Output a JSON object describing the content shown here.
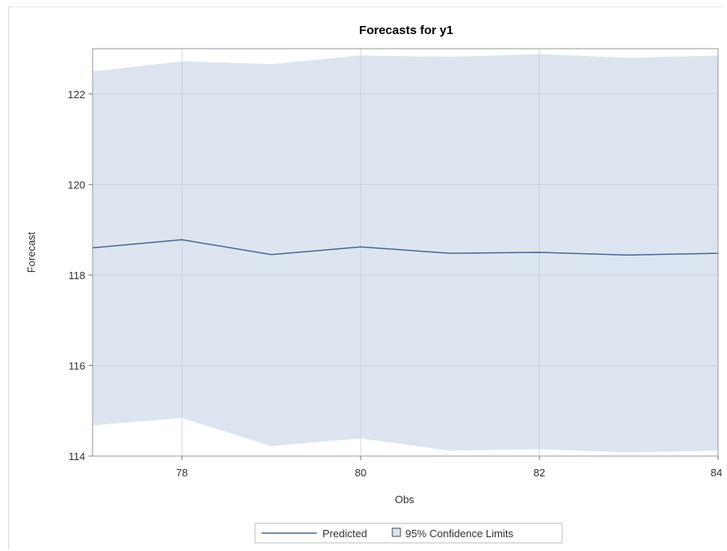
{
  "chart_data": {
    "type": "line",
    "title": "Forecasts for y1",
    "xlabel": "Obs",
    "ylabel": "Forecast",
    "xlim": [
      77,
      84
    ],
    "ylim": [
      114,
      123
    ],
    "x_ticks": [
      "78",
      "80",
      "82",
      "84"
    ],
    "y_ticks": [
      "114",
      "116",
      "118",
      "120",
      "122"
    ],
    "x_tick_values": [
      78,
      80,
      82,
      84
    ],
    "y_tick_values": [
      114,
      116,
      118,
      120,
      122
    ],
    "grid": true,
    "legend_position": "bottom",
    "x": [
      77,
      78,
      79,
      80,
      81,
      82,
      83,
      84
    ],
    "series": [
      {
        "name": "Predicted",
        "type": "line",
        "values": [
          118.6,
          118.78,
          118.45,
          118.62,
          118.48,
          118.5,
          118.44,
          118.48
        ],
        "color": "#4a6890"
      },
      {
        "name": "95% Confidence Limits",
        "type": "band",
        "upper": [
          122.5,
          122.72,
          122.66,
          122.85,
          122.82,
          122.88,
          122.8,
          122.85
        ],
        "lower": [
          114.68,
          114.84,
          114.22,
          114.39,
          114.12,
          114.15,
          114.08,
          114.12
        ],
        "color": "#dce4f0"
      }
    ]
  }
}
